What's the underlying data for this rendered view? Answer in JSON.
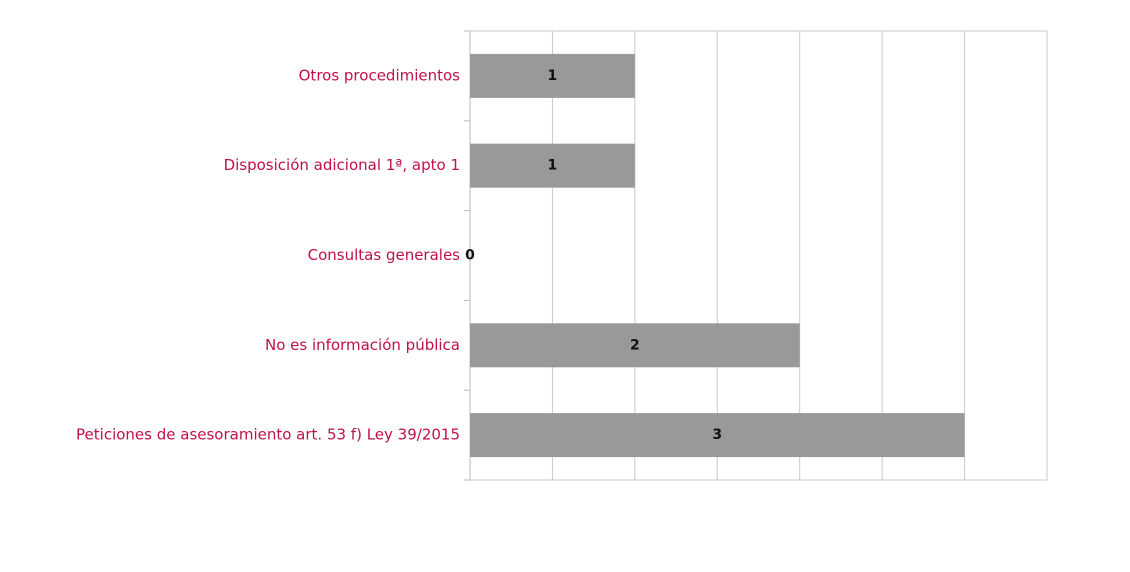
{
  "chart_data": {
    "type": "bar",
    "orientation": "horizontal",
    "categories": [
      "Otros procedimientos",
      "Disposición adicional 1ª, apto 1",
      "Consultas generales",
      "No es información pública",
      "Peticiones de asesoramiento art. 53 f) Ley 39/2015"
    ],
    "values": [
      1,
      1,
      0,
      2,
      3
    ],
    "color": "#999999",
    "xlim": [
      0,
      3.5
    ],
    "xticks": [
      0,
      0.5,
      1,
      1.5,
      2,
      2.5,
      3,
      3.5
    ],
    "grid": true
  }
}
